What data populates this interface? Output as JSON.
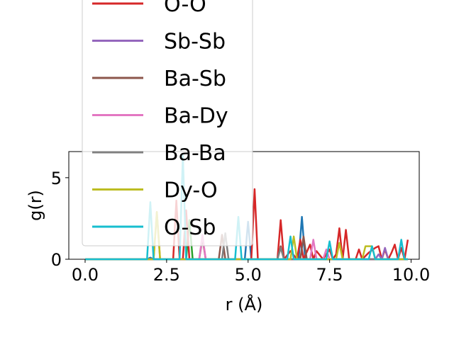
{
  "chart_data": {
    "type": "line",
    "xlabel": "r (Å)",
    "ylabel": "g(r)",
    "xlim": [
      -0.5,
      10.25
    ],
    "ylim": [
      0,
      6.6
    ],
    "xticks": [
      "0.0",
      "2.5",
      "5.0",
      "7.5",
      "10.0"
    ],
    "xtick_values": [
      0,
      2.5,
      5,
      7.5,
      10
    ],
    "yticks": [
      "0",
      "5"
    ],
    "ytick_values": [
      0,
      5
    ],
    "legend_position": "upper-left (overflowing top of plot)",
    "series": [
      {
        "name": "",
        "color": "#1f77b4",
        "x": [
          0,
          1.9,
          2.0,
          2.1,
          4.9,
          5.0,
          5.1,
          6.55,
          6.65,
          6.75,
          9.9
        ],
        "y": [
          0,
          0,
          0.1,
          0,
          0,
          2.3,
          0,
          0,
          2.6,
          0,
          0
        ]
      },
      {
        "name": "",
        "color": "#ff7f0e",
        "x": [
          0,
          2.1,
          2.2,
          2.3,
          9.9
        ],
        "y": [
          0,
          0,
          2.9,
          0,
          0
        ]
      },
      {
        "name": "",
        "color": "#2ca02c",
        "x": [
          0,
          3.1,
          3.2,
          3.3,
          9.9
        ],
        "y": [
          0,
          0,
          2.4,
          0,
          0
        ]
      },
      {
        "name": "O-O",
        "color": "#d62728",
        "x": [
          0,
          2.7,
          2.8,
          2.9,
          3.0,
          3.1,
          3.2,
          5.1,
          5.2,
          5.3,
          5.9,
          6.0,
          6.1,
          6.3,
          6.5,
          6.6,
          6.7,
          6.9,
          7.0,
          7.1,
          7.3,
          7.5,
          7.6,
          7.7,
          7.8,
          7.9,
          8.0,
          8.1,
          8.3,
          8.4,
          8.5,
          8.7,
          8.9,
          9.0,
          9.1,
          9.2,
          9.3,
          9.4,
          9.5,
          9.6,
          9.7,
          9.8,
          9.9
        ],
        "y": [
          0,
          0,
          3.6,
          0,
          0,
          3.0,
          0,
          0,
          4.3,
          0,
          0,
          2.4,
          0,
          0.5,
          0,
          1.2,
          0,
          0.9,
          0,
          0.5,
          0,
          0.6,
          0,
          0.3,
          1.9,
          0,
          1.8,
          0,
          0,
          0.6,
          0,
          0.4,
          0.7,
          0.8,
          0,
          0.6,
          0,
          0.4,
          0.9,
          0,
          0.7,
          0,
          1.2
        ]
      },
      {
        "name": "Sb-Sb",
        "color": "#9467bd",
        "x": [
          0,
          8.9,
          9.0,
          9.1,
          9.2,
          9.3,
          9.9
        ],
        "y": [
          0,
          0,
          0.3,
          0,
          0.7,
          0,
          0
        ]
      },
      {
        "name": "Ba-Sb",
        "color": "#8c564b",
        "x": [
          0,
          3.5,
          3.6,
          3.7,
          4.1,
          4.2,
          4.3,
          5.9,
          6.0,
          6.1,
          6.6,
          6.7,
          6.8,
          9.9
        ],
        "y": [
          0,
          0,
          1.3,
          0,
          0,
          1.5,
          0,
          0,
          0.8,
          0,
          0,
          1.4,
          0,
          0
        ]
      },
      {
        "name": "Ba-Dy",
        "color": "#e377c2",
        "x": [
          0,
          3.5,
          3.6,
          3.7,
          6.9,
          7.0,
          7.1,
          7.3,
          7.4,
          7.5,
          9.9
        ],
        "y": [
          0,
          0,
          1.5,
          0,
          0,
          1.2,
          0,
          0,
          0.6,
          0,
          0
        ]
      },
      {
        "name": "Ba-Ba",
        "color": "#7f7f7f",
        "x": [
          0,
          4.2,
          4.3,
          4.4,
          5.9,
          6.0,
          6.1,
          9.9
        ],
        "y": [
          0,
          0,
          1.6,
          0,
          0,
          0.7,
          0,
          0
        ]
      },
      {
        "name": "Dy-O",
        "color": "#bcbd22",
        "x": [
          0,
          2.1,
          2.2,
          2.3,
          6.3,
          6.4,
          6.5,
          7.7,
          7.8,
          7.9,
          8.5,
          8.6,
          8.8,
          8.9,
          9.9
        ],
        "y": [
          0,
          0,
          2.9,
          0,
          0,
          1.4,
          0,
          0,
          1.0,
          0,
          0,
          0.8,
          0.8,
          0,
          0
        ]
      },
      {
        "name": "O-Sb",
        "color": "#17becf",
        "x": [
          0,
          1.9,
          2.0,
          2.1,
          2.9,
          3.0,
          3.1,
          4.6,
          4.7,
          4.8,
          6.2,
          6.3,
          6.4,
          7.4,
          7.5,
          7.6,
          8.7,
          8.8,
          8.9,
          9.6,
          9.7,
          9.8,
          9.9
        ],
        "y": [
          0,
          0,
          3.5,
          0,
          0,
          6.4,
          0,
          0,
          2.6,
          0,
          0,
          1.4,
          0,
          0,
          1.1,
          0,
          0,
          0.8,
          0,
          0,
          1.2,
          0,
          0
        ]
      }
    ]
  }
}
